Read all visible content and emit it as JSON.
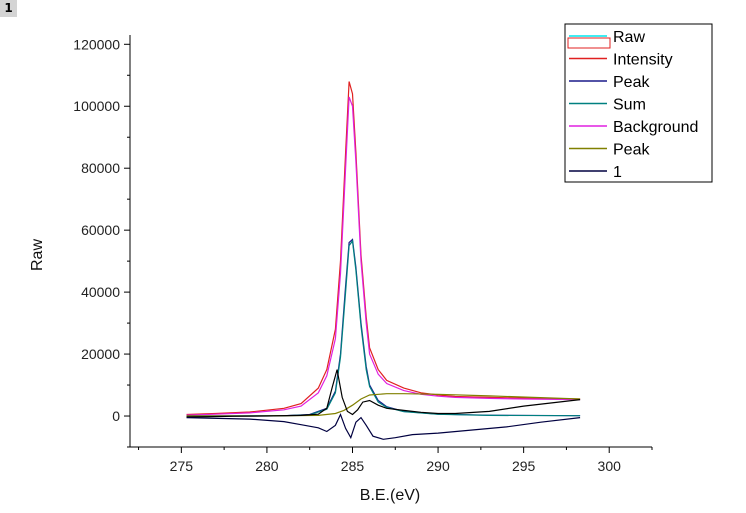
{
  "page_badge": "1",
  "chart_data": {
    "type": "line",
    "xlabel": "B.E.(eV)",
    "ylabel": "Raw",
    "xlim": [
      272,
      302.5
    ],
    "ylim": [
      -10000,
      123000
    ],
    "x_ticks": [
      275,
      280,
      285,
      290,
      295,
      300
    ],
    "y_ticks": [
      0,
      20000,
      40000,
      60000,
      80000,
      100000,
      120000
    ],
    "legend_placement": "top-right",
    "legend": [
      {
        "label": "Raw",
        "color": "#00e5ee"
      },
      {
        "label": "Intensity",
        "color": "#e02020"
      },
      {
        "label": "Peak",
        "color": "#1a1a8a"
      },
      {
        "label": "Sum",
        "color": "#008080"
      },
      {
        "label": "Background",
        "color": "#e020e0"
      },
      {
        "label": "Peak",
        "color": "#808000"
      },
      {
        "label": "1",
        "color": "#000040"
      }
    ],
    "series": [
      {
        "color": "#e02020",
        "x": [
          275.3,
          277,
          279,
          281,
          282,
          283,
          283.5,
          284,
          284.3,
          284.6,
          284.8,
          285,
          285.2,
          285.5,
          285.8,
          286,
          286.5,
          287,
          288,
          289,
          290,
          291,
          293,
          295,
          298.3
        ],
        "y": [
          500,
          800,
          1300,
          2500,
          4000,
          9000,
          15000,
          28000,
          50000,
          85000,
          108000,
          104000,
          85000,
          52000,
          32000,
          22000,
          15000,
          11500,
          9000,
          7500,
          6800,
          6300,
          6000,
          5800,
          5500
        ]
      },
      {
        "color": "#e020e0",
        "x": [
          275.3,
          277,
          279,
          281,
          282,
          283,
          283.5,
          284,
          284.3,
          284.6,
          284.8,
          285,
          285.2,
          285.5,
          285.8,
          286,
          286.5,
          287,
          288,
          289,
          290,
          291,
          293,
          295,
          298.3
        ],
        "y": [
          300,
          600,
          1000,
          2000,
          3200,
          7500,
          13000,
          25000,
          46000,
          80000,
          103000,
          100000,
          82000,
          50000,
          30000,
          20000,
          13500,
          10500,
          8200,
          7000,
          6400,
          6000,
          5700,
          5500,
          5300
        ]
      },
      {
        "color": "#1a1a8a",
        "x": [
          275.3,
          281,
          282.5,
          283.5,
          284,
          284.3,
          284.6,
          284.8,
          285,
          285.2,
          285.5,
          285.8,
          286,
          286.5,
          287,
          288,
          290,
          293,
          298.3
        ],
        "y": [
          0,
          100,
          500,
          2500,
          8000,
          20000,
          42000,
          56000,
          57000,
          48000,
          30000,
          16000,
          10000,
          5000,
          3000,
          1500,
          600,
          250,
          100
        ]
      },
      {
        "color": "#008080",
        "x": [
          275.3,
          281,
          282.5,
          283.5,
          284,
          284.3,
          284.6,
          284.8,
          285,
          285.2,
          285.5,
          285.8,
          286,
          286.5,
          287,
          288,
          290,
          293,
          298.3
        ],
        "y": [
          0,
          100,
          400,
          2200,
          7500,
          19000,
          40000,
          55000,
          56500,
          47000,
          29000,
          15000,
          9500,
          4500,
          2800,
          1400,
          550,
          200,
          100
        ]
      },
      {
        "color": "#808000",
        "x": [
          275.3,
          280,
          283,
          284,
          284.5,
          285,
          285.5,
          286,
          287,
          288,
          290,
          293,
          298.3
        ],
        "y": [
          0,
          50,
          200,
          800,
          1800,
          3500,
          5500,
          6800,
          7200,
          7200,
          7000,
          6500,
          5500
        ]
      },
      {
        "color": "#000000",
        "x": [
          275.3,
          278,
          280,
          282,
          283,
          283.5,
          283.8,
          284.1,
          284.4,
          284.7,
          285,
          285.3,
          285.6,
          286,
          286.5,
          287,
          288,
          289,
          290,
          291,
          293,
          295,
          298.3
        ],
        "y": [
          -300,
          -100,
          0,
          200,
          600,
          2500,
          9000,
          15000,
          6000,
          1500,
          500,
          2000,
          4500,
          5000,
          3500,
          2500,
          1800,
          1200,
          800,
          800,
          1500,
          3200,
          5300
        ]
      },
      {
        "color": "#000040",
        "x": [
          275.3,
          279,
          281,
          282,
          283,
          283.5,
          284,
          284.3,
          284.6,
          284.9,
          285.2,
          285.5,
          285.8,
          286.2,
          286.8,
          287.5,
          288.5,
          290,
          292,
          294,
          296,
          298.3
        ],
        "y": [
          -500,
          -1000,
          -1800,
          -2800,
          -3800,
          -5000,
          -3000,
          500,
          -4000,
          -7000,
          -2000,
          -500,
          -3000,
          -6500,
          -7500,
          -7000,
          -6000,
          -5500,
          -4500,
          -3500,
          -2000,
          -500
        ]
      }
    ]
  }
}
